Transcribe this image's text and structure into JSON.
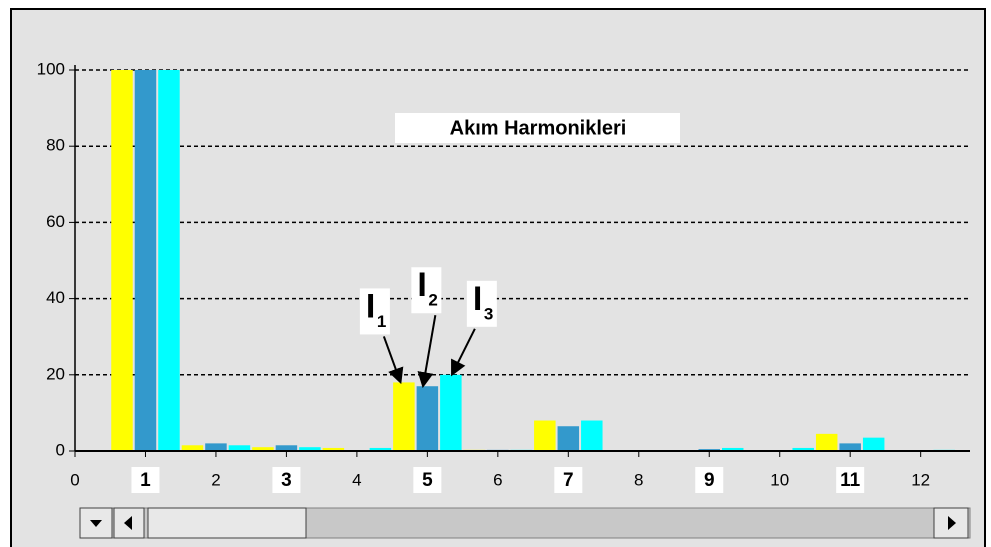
{
  "chart_data": {
    "type": "bar",
    "title": "Akım Harmonikleri",
    "x": [
      1,
      2,
      3,
      4,
      5,
      6,
      7,
      8,
      9,
      10,
      11,
      12
    ],
    "series": [
      {
        "color": "#ffff00",
        "values": [
          100,
          1.5,
          1,
          0.8,
          18,
          0.3,
          8,
          0,
          0,
          0,
          4.5,
          0
        ]
      },
      {
        "color": "#3399cc",
        "values": [
          100,
          2,
          1.5,
          0,
          17,
          0.3,
          6.5,
          0,
          0.5,
          0,
          2,
          0
        ]
      },
      {
        "color": "#00ffff",
        "values": [
          100,
          1.5,
          1,
          0.8,
          20,
          0.3,
          8,
          0,
          0.8,
          0.8,
          3.5,
          0.3
        ]
      }
    ],
    "xlim": [
      0,
      12.7
    ],
    "xticks": [
      0,
      1,
      2,
      3,
      4,
      5,
      6,
      7,
      8,
      9,
      10,
      11,
      12
    ],
    "ylim": [
      0,
      100
    ],
    "yticks": [
      0,
      20,
      40,
      60,
      80,
      100
    ],
    "grid": true,
    "annotations": [
      {
        "label": "I",
        "subscript": "1",
        "x": 5,
        "series": 0
      },
      {
        "label": "I",
        "subscript": "2",
        "x": 5,
        "series": 1
      },
      {
        "label": "I",
        "subscript": "3",
        "x": 5,
        "series": 2
      }
    ]
  }
}
